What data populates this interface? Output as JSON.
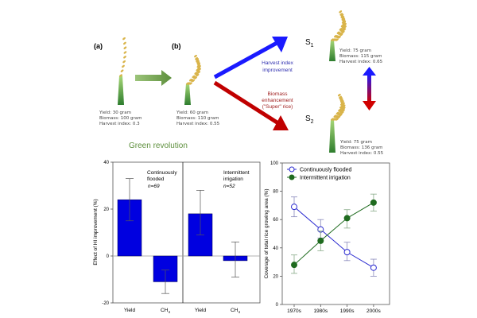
{
  "diagram": {
    "panel_a": {
      "label": "(a)",
      "yield": "Yield: 30 gram",
      "biomass": "Biomass: 100 gram",
      "hi": "Harvest index: 0.3"
    },
    "panel_b": {
      "label": "(b)",
      "yield": "Yield: 60 gram",
      "biomass": "Biomass: 110 gram",
      "hi": "Harvest index: 0.55"
    },
    "green_revolution": "Green revolution",
    "blue_arrow": {
      "line1": "Harvest index",
      "line2": "improvement"
    },
    "red_arrow": {
      "line1": "Biomass",
      "line2": "enhancement",
      "line3": "(\"Super\" rice)"
    },
    "s1": {
      "label": "S",
      "sub": "1",
      "yield": "Yield: 75 gram",
      "biomass": "Biomass: 115 gram",
      "hi": "Harvest index: 0.65"
    },
    "s2": {
      "label": "S",
      "sub": "2",
      "yield": "Yield: 75 gram",
      "biomass": "Biomass: 136 gram",
      "hi": "Harvest index: 0.55"
    },
    "colors": {
      "blue": "#1a1aff",
      "red": "#c00000",
      "green": "#6a9a40",
      "grain": "#d9b44a"
    }
  },
  "chart_data": [
    {
      "type": "bar",
      "ylabel": "Effect of HI improvement (%)",
      "ylim": [
        -20,
        40
      ],
      "yticks": [
        "40",
        "20",
        "0",
        "-20"
      ],
      "groups": [
        {
          "title": "Continuously flooded",
          "n": "n=69",
          "categories": [
            "Yield",
            "CH4"
          ],
          "values": [
            24,
            -11
          ],
          "err_low": [
            15,
            -16
          ],
          "err_high": [
            33,
            -6
          ]
        },
        {
          "title": "Intermittent irrigation",
          "n": "n=52",
          "categories": [
            "Yield",
            "CH4"
          ],
          "values": [
            18,
            -2
          ],
          "err_low": [
            9,
            -9
          ],
          "err_high": [
            28,
            6
          ]
        }
      ],
      "bar_color": "#0000e0"
    },
    {
      "type": "line",
      "ylabel": "Coverage of total rice growing area (%)",
      "ylim": [
        0,
        100
      ],
      "yticks": [
        "0",
        "20",
        "40",
        "60",
        "80",
        "100"
      ],
      "categories": [
        "1970s",
        "1980s",
        "1990s",
        "2000s"
      ],
      "legend_position": "top-left",
      "series": [
        {
          "name": "Continuously flooded",
          "color": "#2a2ad0",
          "marker": "open-circle",
          "values": [
            69,
            53,
            37,
            26
          ],
          "err_low": [
            62,
            47,
            31,
            20
          ],
          "err_high": [
            76,
            60,
            44,
            32
          ]
        },
        {
          "name": "Intermittent irrigation",
          "color": "#1f6b1f",
          "marker": "filled-circle",
          "values": [
            28,
            45,
            61,
            72
          ],
          "err_low": [
            22,
            38,
            54,
            66
          ],
          "err_high": [
            35,
            52,
            67,
            78
          ]
        }
      ]
    }
  ]
}
